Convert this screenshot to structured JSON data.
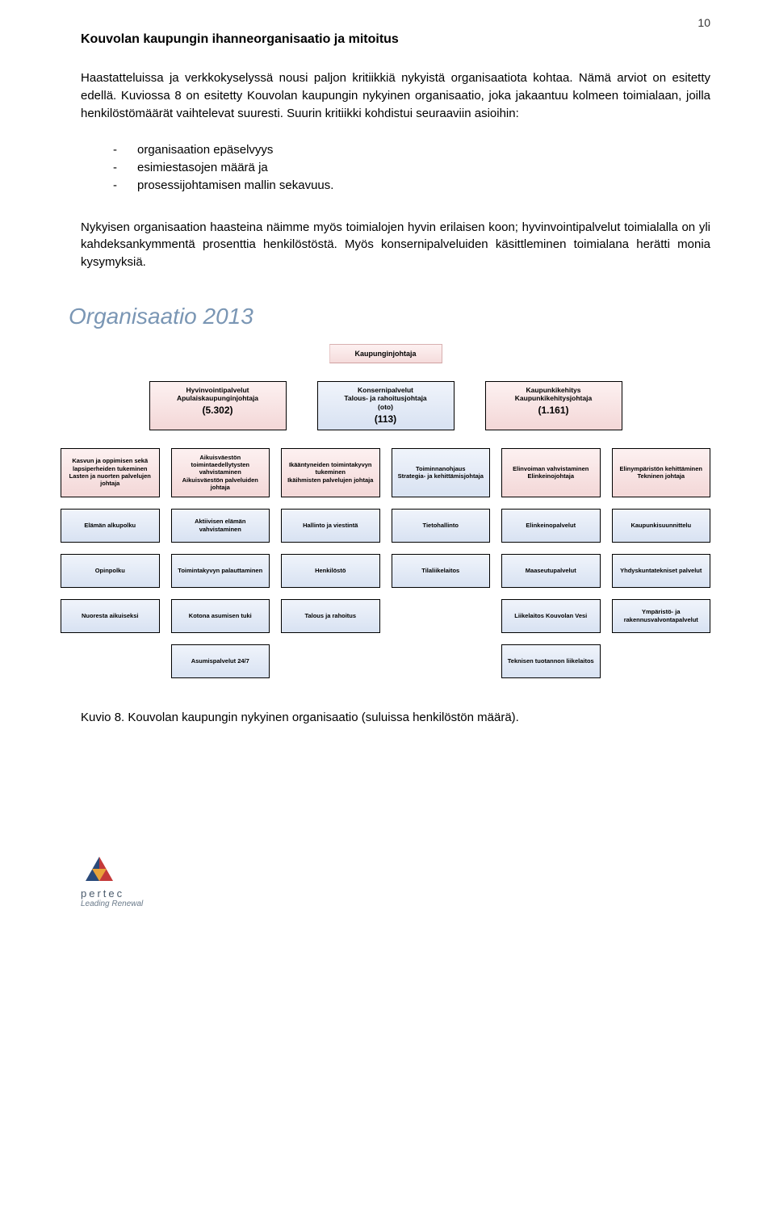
{
  "page_number": "10",
  "heading": "Kouvolan kaupungin ihanneorganisaatio ja mitoitus",
  "paragraphs": {
    "p1": "Haastatteluissa ja verkkokyselyssä nousi paljon kritiikkiä nykyistä organisaatiota kohtaa. Nämä arviot on esitetty edellä. Kuviossa 8 on esitetty Kouvolan kaupungin nykyinen organisaatio, joka jakaantuu kolmeen toimialaan, joilla henkilöstömäärät vaihtelevat suuresti. Suurin kritiikki kohdistui seuraaviin asioihin:",
    "p2": "Nykyisen organisaation haasteina näimme myös toimialojen hyvin erilaisen koon; hyvinvointipalvelut toimialalla on yli kahdeksankymmentä prosenttia henkilöstöstä. Myös konsernipalveluiden käsittleminen toimialana herätti monia kysymyksiä."
  },
  "bullets": [
    "organisaation epäselvyys",
    "esimiestasojen määrä ja",
    "prosessijohtamisen mallin sekavuus."
  ],
  "org": {
    "title": "Organisaatio 2013",
    "top": "Kaupunginjohtaja",
    "lvl1": [
      {
        "l1": "Hyvinvointipalvelut",
        "l2": "Apulaiskaupunginjohtaja",
        "count": "(5.302)",
        "style": "pink"
      },
      {
        "l1": "Konsernipalvelut",
        "l2": "Talous- ja rahoitusjohtaja",
        "l3": "(oto)",
        "count": "(113)",
        "style": "blue"
      },
      {
        "l1": "Kaupunkikehitys",
        "l2": "Kaupunkikehitysjohtaja",
        "count": "(1.161)",
        "style": "pink"
      }
    ],
    "grid": [
      [
        {
          "t": "Kasvun ja oppimisen sekä lapsiperheiden tukeminen\nLasten ja nuorten palvelujen johtaja",
          "s": "pink"
        },
        {
          "t": "Aikuisväestön toimintaedellytysten vahvistaminen\nAikuisväestön palveluiden johtaja",
          "s": "pink"
        },
        {
          "t": "Ikääntyneiden toimintakyvyn tukeminen\nIkäihmisten palvelujen johtaja",
          "s": "pink"
        },
        {
          "t": "Toiminnanohjaus\nStrategia- ja kehittämisjohtaja",
          "s": "blue"
        },
        {
          "t": "Elinvoiman vahvistaminen\nElinkeinojohtaja",
          "s": "pink"
        },
        {
          "t": "Elinympäristön kehittäminen\nTekninen johtaja",
          "s": "pink"
        }
      ],
      [
        {
          "t": "Elämän alkupolku",
          "s": "blue"
        },
        {
          "t": "Aktiivisen elämän vahvistaminen",
          "s": "blue"
        },
        {
          "t": "Hallinto ja viestintä",
          "s": "blue"
        },
        {
          "t": "Tietohallinto",
          "s": "blue"
        },
        {
          "t": "Elinkeinopalvelut",
          "s": "blue"
        },
        {
          "t": "Kaupunkisuunnittelu",
          "s": "blue"
        }
      ],
      [
        {
          "t": "Opinpolku",
          "s": "blue"
        },
        {
          "t": "Toimintakyvyn palauttaminen",
          "s": "blue"
        },
        {
          "t": "Henkilöstö",
          "s": "blue"
        },
        {
          "t": "Tilaliikelaitos",
          "s": "blue"
        },
        {
          "t": "Maaseutupalvelut",
          "s": "blue"
        },
        {
          "t": "Yhdyskuntatekniset palvelut",
          "s": "blue"
        }
      ],
      [
        {
          "t": "Nuoresta aikuiseksi",
          "s": "blue"
        },
        {
          "t": "Kotona asumisen tuki",
          "s": "blue"
        },
        {
          "t": "Talous ja rahoitus",
          "s": "blue"
        },
        {
          "t": "",
          "s": "empty"
        },
        {
          "t": "Liikelaitos Kouvolan Vesi",
          "s": "blue"
        },
        {
          "t": "Ympäristö- ja rakennusvalvontapalvelut",
          "s": "blue"
        }
      ],
      [
        {
          "t": "",
          "s": "empty"
        },
        {
          "t": "Asumispalvelut 24/7",
          "s": "blue"
        },
        {
          "t": "",
          "s": "empty"
        },
        {
          "t": "",
          "s": "empty"
        },
        {
          "t": "Teknisen tuotannon liikelaitos",
          "s": "blue"
        },
        {
          "t": "",
          "s": "empty"
        }
      ]
    ]
  },
  "caption": "Kuvio 8. Kouvolan kaupungin nykyinen organisaatio (suluissa henkilöstön määrä).",
  "footer": {
    "brand": "pertec",
    "tag": "Leading Renewal"
  }
}
